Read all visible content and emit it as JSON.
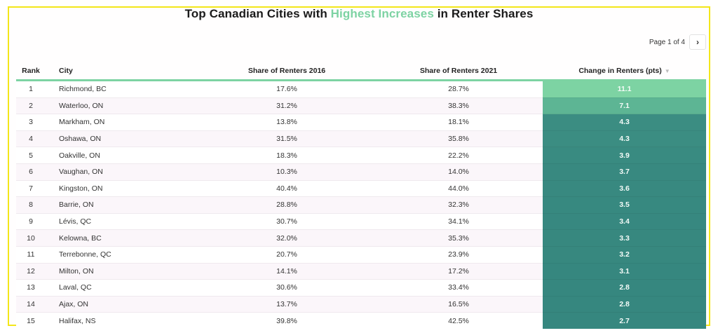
{
  "title": {
    "prefix": "Top Canadian Cities with ",
    "highlight": "Highest Increases",
    "suffix": " in Renter Shares",
    "highlight_color": "#7dd3a3"
  },
  "pager": {
    "text": "Page 1 of 4",
    "next_icon": "chevron-right-icon",
    "next_glyph": "›"
  },
  "columns": {
    "rank": "Rank",
    "city": "City",
    "share_2016": "Share of Renters 2016",
    "share_2021": "Share of Renters 2021",
    "change": "Change in Renters (pts)",
    "sort_icon": "sort-desc-icon",
    "sort_glyph": "▼"
  },
  "colors": {
    "scale_high": "#7dd3a3",
    "scale_mid": "#5bb393",
    "scale_low": "#36877f"
  },
  "chart_data": {
    "type": "table",
    "title": "Top Canadian Cities with Highest Increases in Renter Shares",
    "columns": [
      "Rank",
      "City",
      "Share of Renters 2016",
      "Share of Renters 2021",
      "Change in Renters (pts)"
    ],
    "rows": [
      {
        "rank": "1",
        "city": "Richmond, BC",
        "s2016": "17.6%",
        "s2021": "28.7%",
        "change": "11.1"
      },
      {
        "rank": "2",
        "city": "Waterloo, ON",
        "s2016": "31.2%",
        "s2021": "38.3%",
        "change": "7.1"
      },
      {
        "rank": "3",
        "city": "Markham, ON",
        "s2016": "13.8%",
        "s2021": "18.1%",
        "change": "4.3"
      },
      {
        "rank": "4",
        "city": "Oshawa, ON",
        "s2016": "31.5%",
        "s2021": "35.8%",
        "change": "4.3"
      },
      {
        "rank": "5",
        "city": "Oakville, ON",
        "s2016": "18.3%",
        "s2021": "22.2%",
        "change": "3.9"
      },
      {
        "rank": "6",
        "city": "Vaughan, ON",
        "s2016": "10.3%",
        "s2021": "14.0%",
        "change": "3.7"
      },
      {
        "rank": "7",
        "city": "Kingston, ON",
        "s2016": "40.4%",
        "s2021": "44.0%",
        "change": "3.6"
      },
      {
        "rank": "8",
        "city": "Barrie, ON",
        "s2016": "28.8%",
        "s2021": "32.3%",
        "change": "3.5"
      },
      {
        "rank": "9",
        "city": "Lévis, QC",
        "s2016": "30.7%",
        "s2021": "34.1%",
        "change": "3.4"
      },
      {
        "rank": "10",
        "city": "Kelowna, BC",
        "s2016": "32.0%",
        "s2021": "35.3%",
        "change": "3.3"
      },
      {
        "rank": "11",
        "city": "Terrebonne, QC",
        "s2016": "20.7%",
        "s2021": "23.9%",
        "change": "3.2"
      },
      {
        "rank": "12",
        "city": "Milton, ON",
        "s2016": "14.1%",
        "s2021": "17.2%",
        "change": "3.1"
      },
      {
        "rank": "13",
        "city": "Laval, QC",
        "s2016": "30.6%",
        "s2021": "33.4%",
        "change": "2.8"
      },
      {
        "rank": "14",
        "city": "Ajax, ON",
        "s2016": "13.7%",
        "s2021": "16.5%",
        "change": "2.8"
      },
      {
        "rank": "15",
        "city": "Halifax, NS",
        "s2016": "39.8%",
        "s2021": "42.5%",
        "change": "2.7"
      }
    ]
  }
}
